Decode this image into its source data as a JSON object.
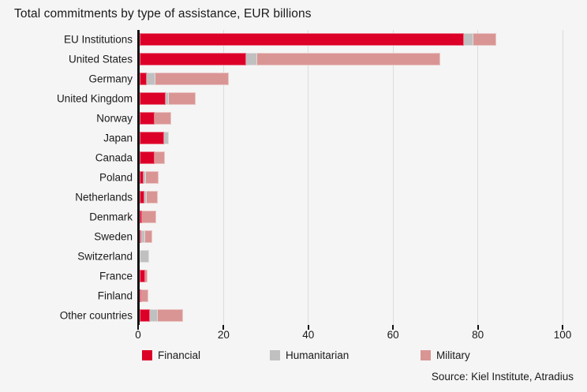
{
  "colors": {
    "background": "#f5f5f5",
    "financial": "#dc0028",
    "humanitarian": "#c0c0c0",
    "military": "#d99594",
    "gridline": "#dcdcdc",
    "axis": "#111111",
    "text": "#1a1a1a"
  },
  "chart_data": {
    "type": "bar",
    "orientation": "horizontal-stacked",
    "title": "Total commitments by type of assistance, EUR billions",
    "categories": [
      "EU Institutions",
      "United States",
      "Germany",
      "United Kingdom",
      "Norway",
      "Japan",
      "Canada",
      "Poland",
      "Netherlands",
      "Denmark",
      "Sweden",
      "Switzerland",
      "France",
      "Finland",
      "Other countries"
    ],
    "series": [
      {
        "name": "Financial",
        "color": "#dc0028",
        "values": [
          76.5,
          25.1,
          1.6,
          6.2,
          3.5,
          5.8,
          3.5,
          1.0,
          1.1,
          0.6,
          0.3,
          0,
          1.3,
          0.2,
          2.4
        ]
      },
      {
        "name": "Humanitarian",
        "color": "#c0c0c0",
        "values": [
          2.2,
          2.6,
          2.2,
          0.6,
          0,
          1.1,
          0,
          0.4,
          0.5,
          0,
          1.0,
          2.3,
          0,
          0,
          1.9
        ]
      },
      {
        "name": "Military",
        "color": "#d99594",
        "values": [
          5.5,
          43.3,
          17.3,
          6.4,
          3.9,
          0,
          2.5,
          3.0,
          2.7,
          3.4,
          1.7,
          0,
          0.6,
          1.7,
          6.0
        ]
      }
    ],
    "xlim": [
      0,
      100
    ],
    "xticks": [
      0,
      20,
      40,
      60,
      80,
      100
    ],
    "xlabel": "",
    "ylabel": "",
    "grid": "vertical",
    "legend_position": "bottom",
    "source": "Source: Kiel Institute, Atradius"
  }
}
